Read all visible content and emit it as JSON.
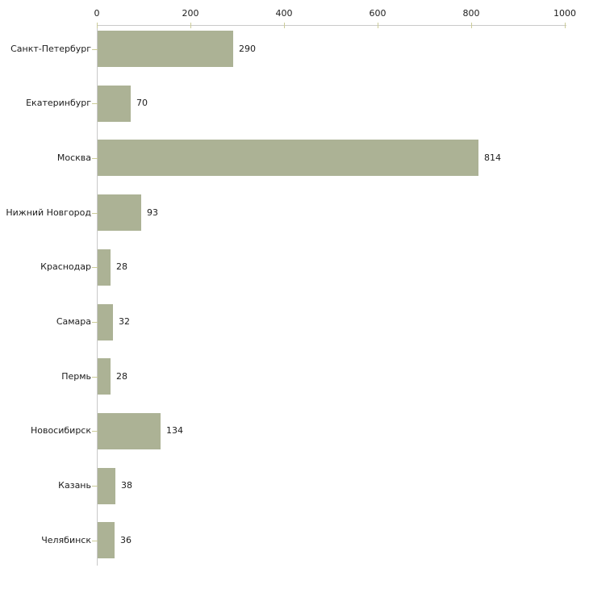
{
  "chart_data": {
    "type": "bar",
    "orientation": "horizontal",
    "title": "",
    "xlabel": "",
    "ylabel": "",
    "categories": [
      "Санкт-Петербург",
      "Екатеринбург",
      "Москва",
      "Нижний Новгород",
      "Краснодар",
      "Самара",
      "Пермь",
      "Новосибирск",
      "Казань",
      "Челябинск"
    ],
    "values": [
      290,
      70,
      814,
      93,
      28,
      32,
      28,
      134,
      38,
      36
    ],
    "value_labels": [
      "290",
      "70",
      "814",
      "93",
      "28",
      "32",
      "28",
      "134",
      "38",
      "36"
    ],
    "xlim": [
      0,
      1000
    ],
    "x_ticks": [
      0,
      200,
      400,
      600,
      800,
      1000
    ],
    "x_tick_labels": [
      "0",
      "200",
      "400",
      "600",
      "800",
      "1000"
    ],
    "grid": false,
    "legend_position": "none",
    "colors": {
      "bar_fill": "#acb295",
      "axis_line": "#c9c9c9",
      "tick_mark": "#cccc99",
      "text": "#1c1c1c",
      "background": "#ffffff"
    }
  }
}
